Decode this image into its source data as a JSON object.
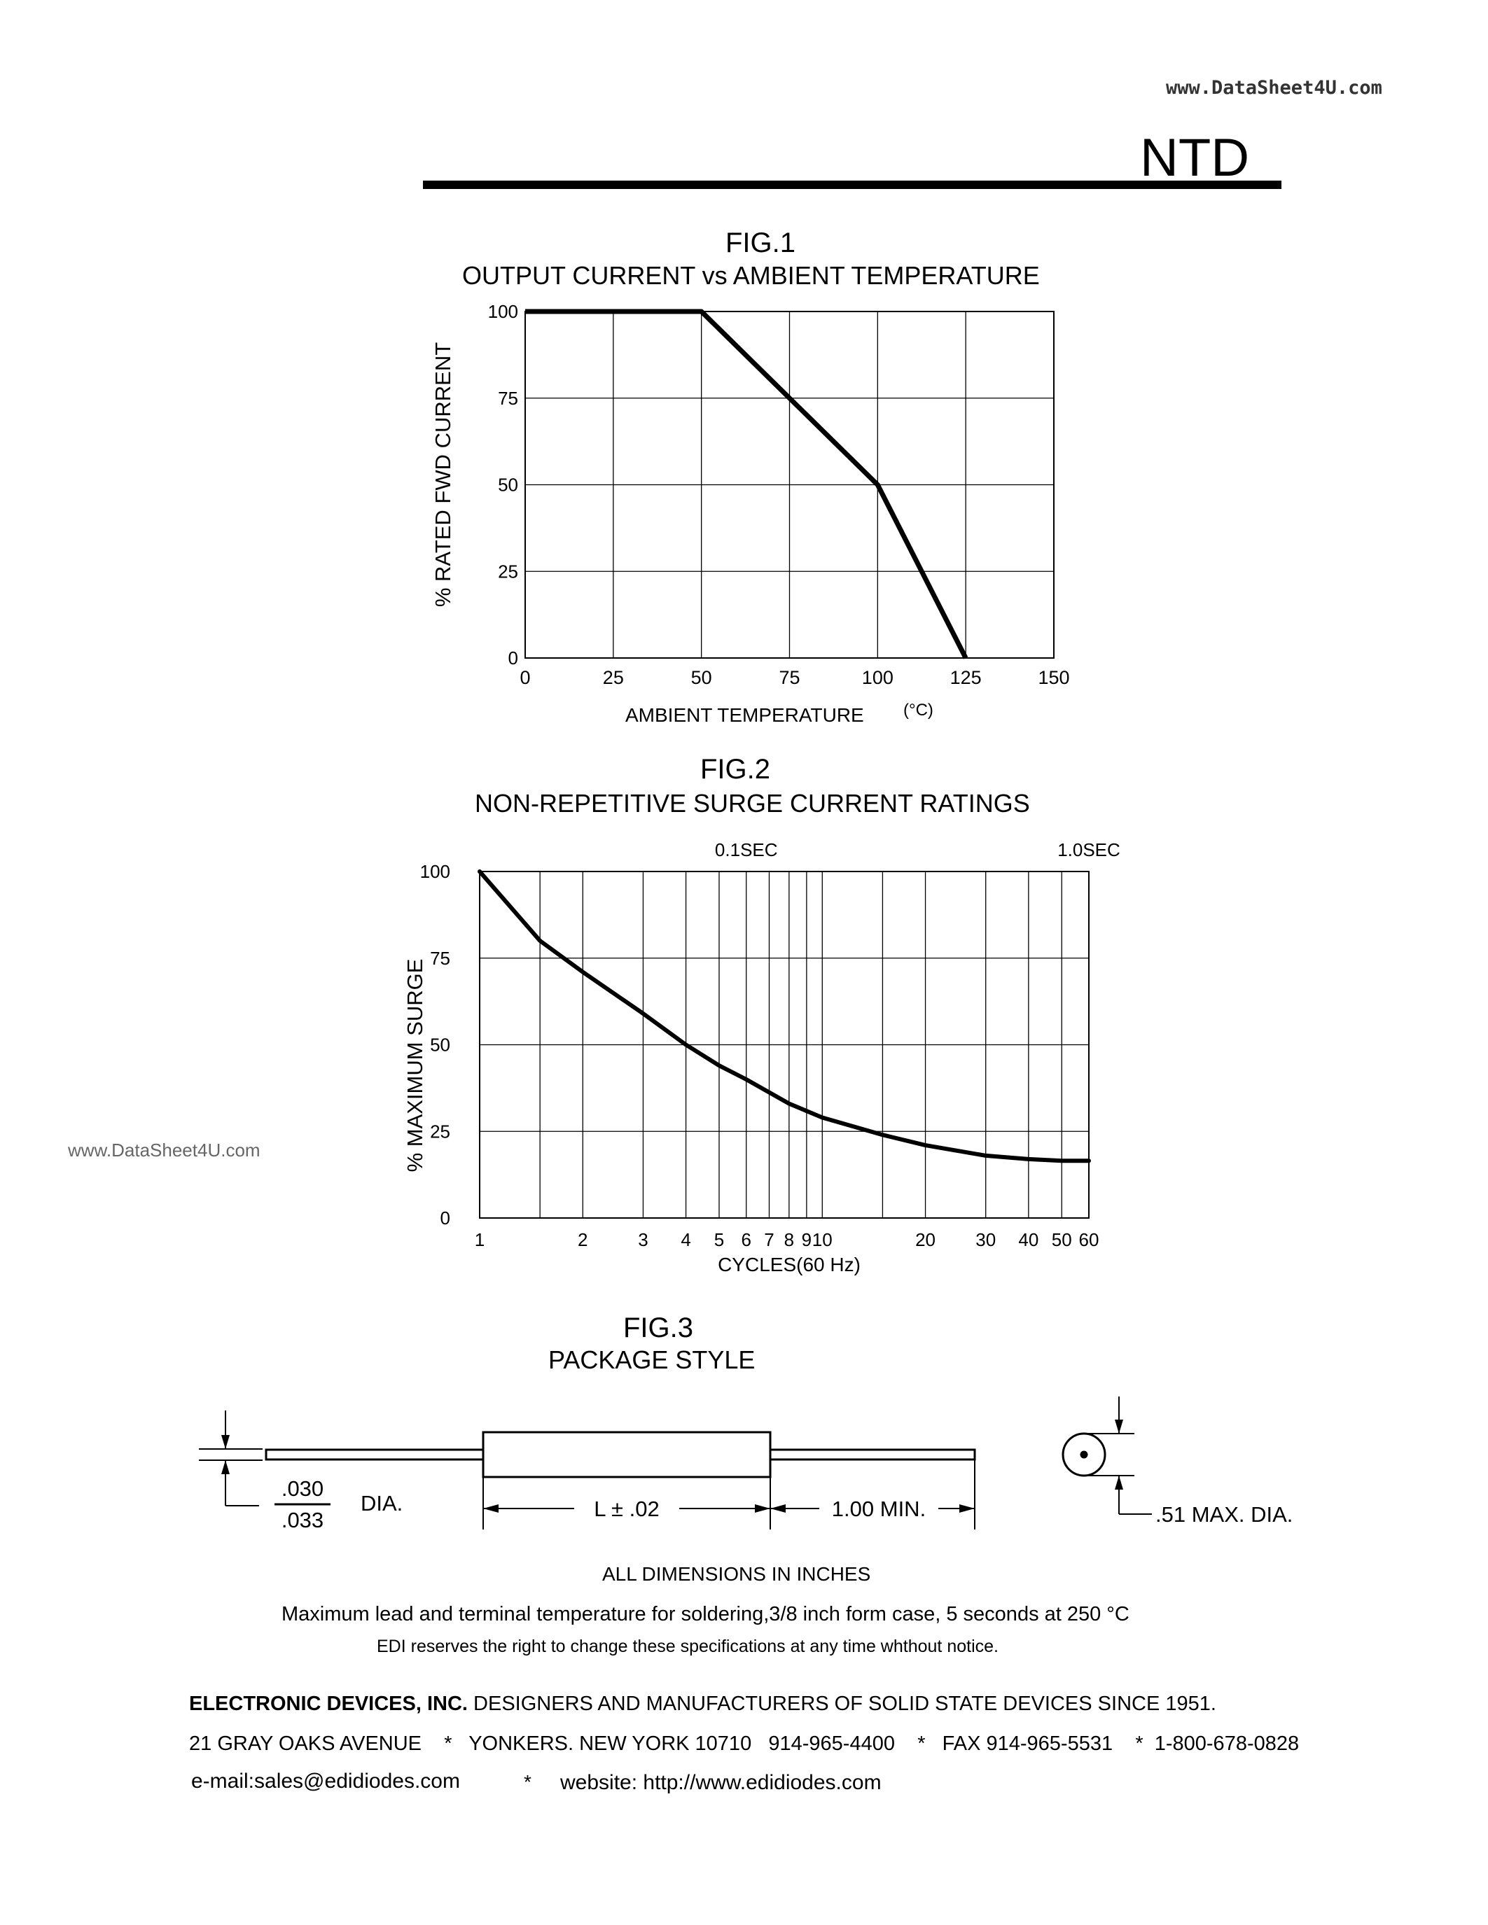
{
  "watermark": "www.DataSheet4U.com",
  "part_number": "NTD",
  "fig1": {
    "number": "FIG.1",
    "title": "OUTPUT  CURRENT vs  AMBIENT  TEMPERATURE",
    "chart_data": {
      "type": "line",
      "title": "OUTPUT CURRENT vs AMBIENT TEMPERATURE",
      "xlabel": "AMBIENT  TEMPERATURE",
      "xunit": "(°C)",
      "ylabel": "% RATED  FWD  CURRENT",
      "x_ticks": [
        "0",
        "25",
        "50",
        "75",
        "100",
        "125",
        "150"
      ],
      "y_ticks": [
        "0",
        "25",
        "50",
        "75",
        "100"
      ],
      "xlim": [
        0,
        150
      ],
      "ylim": [
        0,
        100
      ],
      "grid": true,
      "series": [
        {
          "x": [
            0,
            50,
            100,
            125
          ],
          "y": [
            100,
            100,
            50,
            0
          ]
        }
      ]
    }
  },
  "fig2": {
    "number": "FIG.2",
    "title": "NON-REPETITIVE  SURGE  CURRENT RATINGS",
    "chart_data": {
      "type": "line",
      "title": "NON-REPETITIVE SURGE CURRENT RATINGS",
      "xlabel": "CYCLES(60 Hz)",
      "ylabel": "% MAXIMUM  SURGE",
      "x_scale": "log",
      "x_ticks": [
        "1",
        "2",
        "3",
        "4",
        "5",
        "6",
        "7",
        "8",
        "9",
        "10",
        "20",
        "30",
        "40",
        "50",
        "60"
      ],
      "y_ticks": [
        "0",
        "25",
        "50",
        "75",
        "100"
      ],
      "xlim": [
        1,
        60
      ],
      "ylim": [
        0,
        100
      ],
      "grid": true,
      "annotations": [
        {
          "text": "0.1SEC",
          "x": 6
        },
        {
          "text": "1.0SEC",
          "x": 60
        }
      ],
      "series": [
        {
          "x": [
            1,
            1.5,
            2,
            3,
            4,
            5,
            6,
            8,
            10,
            15,
            20,
            30,
            40,
            50,
            60
          ],
          "y": [
            100,
            80,
            71,
            59,
            50,
            44,
            40,
            33,
            29,
            24,
            21,
            18,
            17,
            16.5,
            16.5
          ]
        }
      ]
    }
  },
  "fig3": {
    "number": "FIG.3",
    "title": "PACKAGE  STYLE",
    "lead_dia_top": ".030",
    "lead_dia_bottom": ".033",
    "dia_label": "DIA.",
    "body_length": "L  ±  .02",
    "lead_length": "1.00 MIN.",
    "body_dia": ".51 MAX. DIA.",
    "units_note": "ALL DIMENSIONS  IN  INCHES"
  },
  "notes": {
    "soldering": "Maximum  lead  and  terminal  temperature  for  soldering,3/8 inch form  case, 5 seconds  at  250 °C",
    "disclaimer": "EDI reserves  the  right  to  change  these  specifications  at  any  time  whthout  notice."
  },
  "footer": {
    "company": "ELECTRONIC  DEVICES, INC.",
    "tagline": " DESIGNERS  AND  MANUFACTURERS OF SOLID STATE DEVICES SINCE 1951.",
    "address": "21 GRAY OAKS AVENUE    *   YONKERS. NEW YORK 10710   914-965-4400    *   FAX 914-965-5531    *  1-800-678-0828",
    "email": "e-mail:sales@edidiodes.com",
    "separator": "*",
    "website": "website: http://www.edidiodes.com"
  }
}
